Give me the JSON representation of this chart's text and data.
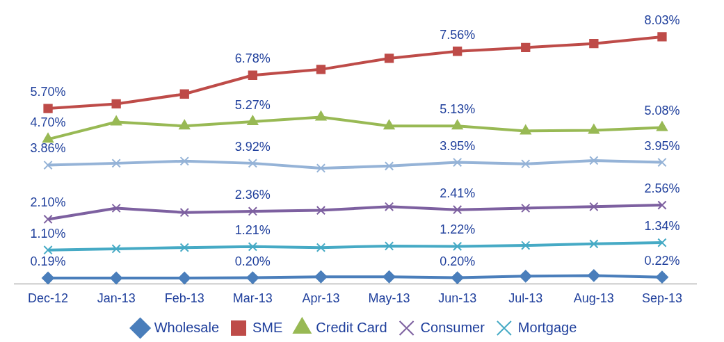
{
  "chart_data": {
    "type": "line",
    "categories": [
      "Dec-12",
      "Jan-13",
      "Feb-13",
      "Mar-13",
      "Apr-13",
      "May-13",
      "Jun-13",
      "Jul-13",
      "Aug-13",
      "Sep-13"
    ],
    "series": [
      {
        "name": "Wholesale",
        "color": "#4a7ebb",
        "marker": "diamond",
        "values": [
          0.19,
          0.19,
          0.19,
          0.2,
          0.23,
          0.23,
          0.2,
          0.25,
          0.27,
          0.22
        ],
        "value_labels": [
          "0.19%",
          null,
          null,
          "0.20%",
          null,
          null,
          "0.20%",
          null,
          null,
          "0.22%"
        ]
      },
      {
        "name": "SME",
        "color": "#be4b48",
        "marker": "square",
        "values": [
          5.7,
          5.85,
          6.17,
          6.78,
          6.97,
          7.33,
          7.56,
          7.68,
          7.81,
          8.03
        ],
        "value_labels": [
          "5.70%",
          null,
          null,
          "6.78%",
          null,
          null,
          "7.56%",
          null,
          null,
          "8.03%"
        ]
      },
      {
        "name": "Credit Card",
        "color": "#98b954",
        "marker": "triangle",
        "values": [
          4.7,
          5.26,
          5.13,
          5.27,
          5.42,
          5.13,
          5.13,
          4.97,
          4.99,
          5.08
        ],
        "value_labels": [
          "4.70%",
          null,
          null,
          "5.27%",
          null,
          null,
          "5.13%",
          null,
          null,
          "5.08%"
        ]
      },
      {
        "name": "Consumer",
        "color": "#7d60a0",
        "marker": "cross",
        "values": [
          2.1,
          2.46,
          2.32,
          2.36,
          2.39,
          2.51,
          2.41,
          2.46,
          2.51,
          2.56
        ],
        "value_labels": [
          "2.10%",
          null,
          null,
          "2.36%",
          null,
          null,
          "2.41%",
          null,
          null,
          "2.56%"
        ]
      },
      {
        "name": "Mortgage",
        "color": "#46aac5",
        "marker": "cross",
        "values": [
          1.1,
          1.14,
          1.18,
          1.21,
          1.18,
          1.23,
          1.22,
          1.25,
          1.3,
          1.34
        ],
        "value_labels": [
          "1.10%",
          null,
          null,
          "1.21%",
          null,
          null,
          "1.22%",
          null,
          null,
          "1.34%"
        ]
      },
      {
        "color": "#95b3d7",
        "marker": "cross",
        "values": [
          3.86,
          3.92,
          3.99,
          3.92,
          3.76,
          3.83,
          3.95,
          3.9,
          4.01,
          3.95
        ],
        "value_labels": [
          "3.86%",
          null,
          null,
          "3.92%",
          null,
          null,
          "3.95%",
          null,
          null,
          "3.95%"
        ]
      }
    ],
    "legend": "bottom",
    "grid": false,
    "tick_labels": "x"
  }
}
